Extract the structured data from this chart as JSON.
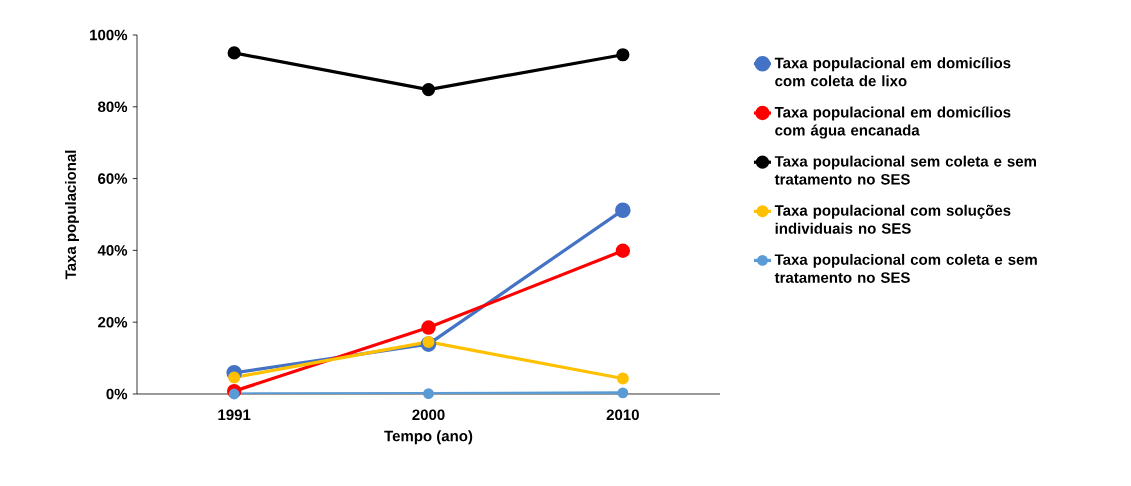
{
  "chart_data": {
    "type": "line",
    "xlabel": "Tempo (ano)",
    "ylabel": "Taxa populacional",
    "categories": [
      "1991",
      "2000",
      "2010"
    ],
    "series": [
      {
        "name": "Taxa populacional em domicílios com coleta de lixo",
        "color": "#4472c4",
        "values": [
          5.9,
          13.9,
          51.2
        ]
      },
      {
        "name": "Taxa populacional em domicílios com água encanada",
        "color": "#ff0000",
        "values": [
          0.8,
          18.5,
          39.9
        ]
      },
      {
        "name": "Taxa populacional sem coleta e sem tratamento no SES",
        "color": "#000000",
        "values": [
          95.0,
          84.8,
          94.5
        ]
      },
      {
        "name": "Taxa populacional com soluções individuais no SES",
        "color": "#ffc000",
        "values": [
          4.6,
          14.5,
          4.3
        ]
      },
      {
        "name": "Taxa populacional com coleta e sem tratamento no SES",
        "color": "#5b9bd5",
        "values": [
          0,
          0.1,
          0.3
        ]
      }
    ],
    "ylim": [
      0,
      100
    ],
    "yticks": [
      {
        "value": 0,
        "label": "0%"
      },
      {
        "value": 20,
        "label": "20%"
      },
      {
        "value": 40,
        "label": "40%"
      },
      {
        "value": 60,
        "label": "60%"
      },
      {
        "value": 80,
        "label": "80%"
      },
      {
        "value": 100,
        "label": "100%"
      }
    ],
    "legend": "right",
    "marker": "circle",
    "grid": false
  }
}
